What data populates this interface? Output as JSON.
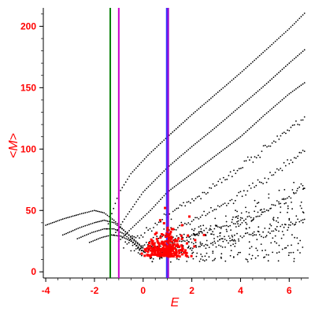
{
  "chart_data": {
    "type": "scatter",
    "title": "",
    "xlabel": "E",
    "ylabel": "<M>",
    "xlim": [
      -4.1,
      6.8
    ],
    "ylim": [
      -5,
      215
    ],
    "x_ticks": [
      -4,
      -2,
      0,
      2,
      4,
      6
    ],
    "y_ticks": [
      0,
      50,
      100,
      150,
      200
    ],
    "grid": false,
    "vertical_lines": [
      {
        "x": -1.35,
        "color": "#008000"
      },
      {
        "x": -1.0,
        "color": "#cc00cc"
      },
      {
        "x": 0.97,
        "color": "#3333ff"
      },
      {
        "x": 1.03,
        "color": "#9900cc"
      }
    ],
    "black_bands": [
      {
        "x": [
          -4.0,
          -3.3,
          -2.6,
          -2.0,
          -1.6,
          -1.2,
          -0.8,
          -0.3,
          0.2
        ],
        "y": [
          38,
          43,
          47,
          50,
          48,
          42,
          34,
          24,
          16
        ]
      },
      {
        "x": [
          -3.3,
          -2.6,
          -2.0,
          -1.6,
          -1.2,
          -0.8,
          -0.3,
          0.2
        ],
        "y": [
          30,
          36,
          40,
          42,
          40,
          34,
          25,
          16
        ]
      },
      {
        "x": [
          -2.7,
          -2.1,
          -1.6,
          -1.2,
          -0.8,
          -0.4,
          0.1
        ],
        "y": [
          27,
          32,
          35,
          35,
          31,
          24,
          15
        ]
      },
      {
        "x": [
          -2.2,
          -1.7,
          -1.3,
          -0.9,
          -0.5,
          0.0
        ],
        "y": [
          24,
          28,
          30,
          29,
          25,
          16
        ]
      },
      {
        "x": [
          -1.5,
          -1.0,
          -0.5,
          0.2,
          1.0,
          2.0,
          3.0,
          4.0,
          5.0,
          6.0,
          6.7
        ],
        "y": [
          35,
          64,
          80,
          95,
          110,
          128,
          145,
          162,
          180,
          198,
          212
        ]
      },
      {
        "x": [
          -1.2,
          -0.7,
          0.0,
          1.0,
          2.0,
          3.0,
          4.0,
          5.0,
          6.0,
          6.7
        ],
        "y": [
          30,
          45,
          65,
          85,
          102,
          118,
          135,
          152,
          170,
          182
        ]
      },
      {
        "x": [
          -1.0,
          -0.5,
          0.3,
          1.0,
          2.0,
          3.0,
          4.0,
          5.0,
          6.0,
          6.7
        ],
        "y": [
          25,
          35,
          50,
          65,
          80,
          95,
          110,
          128,
          145,
          155
        ]
      },
      {
        "x": [
          -0.8,
          -0.3,
          0.5,
          1.3,
          2.3,
          3.3,
          4.3,
          5.3,
          6.7
        ],
        "y": [
          22,
          28,
          38,
          50,
          62,
          75,
          90,
          105,
          125
        ]
      },
      {
        "x": [
          -0.5,
          0.2,
          1.0,
          2.0,
          3.0,
          4.0,
          5.0,
          6.0,
          6.7
        ],
        "y": [
          18,
          24,
          32,
          42,
          52,
          62,
          75,
          88,
          100
        ]
      },
      {
        "x": [
          -0.2,
          0.5,
          1.5,
          2.5,
          3.5,
          4.5,
          5.5,
          6.7
        ],
        "y": [
          15,
          20,
          26,
          32,
          38,
          45,
          55,
          70
        ]
      },
      {
        "x": [
          0.2,
          1.0,
          2.0,
          3.0,
          4.0,
          5.0,
          6.0,
          6.7
        ],
        "y": [
          12,
          16,
          20,
          24,
          28,
          32,
          38,
          45
        ]
      }
    ],
    "red_cluster": {
      "center": [
        0.9,
        16
      ],
      "spread": [
        0.65,
        10
      ],
      "extra": [
        [
          0.9,
          52
        ],
        [
          1.6,
          38
        ],
        [
          1.9,
          45
        ],
        [
          2.5,
          30
        ],
        [
          0.7,
          42
        ]
      ]
    },
    "series_colors": {
      "black": "#000000",
      "red": "#ff0000"
    }
  }
}
